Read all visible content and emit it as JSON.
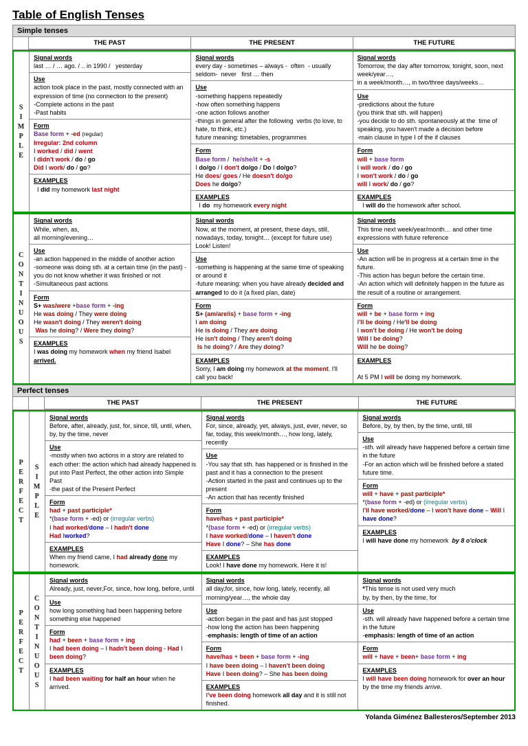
{
  "title": "Table of English Tenses",
  "section_simple": "Simple tenses",
  "section_perfect": "Perfect  tenses",
  "col_headers": {
    "past": "THE PAST",
    "present": "THE PRESENT",
    "future": "THE FUTURE"
  },
  "labels": {
    "signal": "Signal words",
    "use": "Use",
    "form": "Form",
    "examples": "EXAMPLES"
  },
  "aspects": {
    "simple": "S\nI\nM\nP\nL\nE",
    "continuous": "C\nO\nN\nT\nI\nN\nU\nO\nU\nS",
    "perfect": "P\nE\nR\nF\nE\nC\nT",
    "perfsimple": "S\nI\nM\nP\nL\nE",
    "perfcont": "C\nO\nN\nT\nI\nN\nU\nO\nU\nS"
  },
  "footer": "Yolanda Giménez Ballesteros/September 2013"
}
